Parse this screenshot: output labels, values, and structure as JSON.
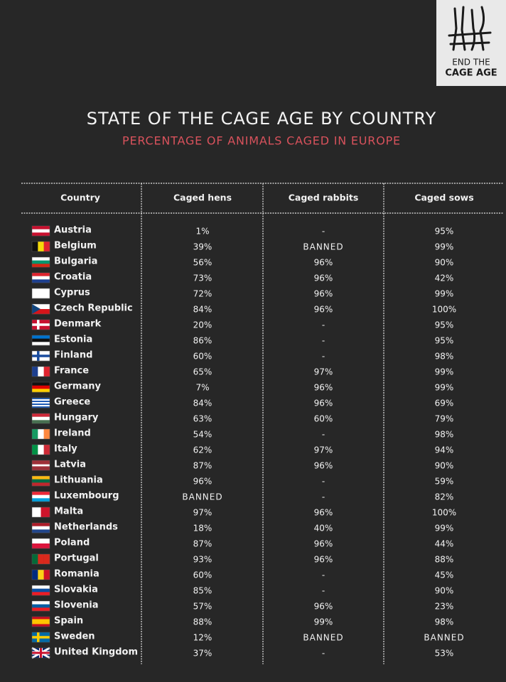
{
  "logo": {
    "line1": "END THE",
    "line2": "CAGE AGE"
  },
  "title": "STATE OF THE CAGE AGE BY COUNTRY",
  "subtitle": "PERCENTAGE OF ANIMALS CAGED IN EUROPE",
  "table": {
    "header": [
      "Country",
      "Caged hens",
      "Caged rabbits",
      "Caged sows"
    ],
    "rows": [
      [
        "Austria",
        "1%",
        "-",
        "95%"
      ],
      [
        "Belgium",
        "39%",
        "BANNED",
        "99%"
      ],
      [
        "Bulgaria",
        "56%",
        "96%",
        "90%"
      ],
      [
        "Croatia",
        "73%",
        "96%",
        "42%"
      ],
      [
        "Cyprus",
        "72%",
        "96%",
        "99%"
      ],
      [
        "Czech Republic",
        "84%",
        "96%",
        "100%"
      ],
      [
        "Denmark",
        "20%",
        "-",
        "95%"
      ],
      [
        "Estonia",
        "86%",
        "-",
        "95%"
      ],
      [
        "Finland",
        "60%",
        "-",
        "98%"
      ],
      [
        "France",
        "65%",
        "97%",
        "99%"
      ],
      [
        "Germany",
        "7%",
        "96%",
        "99%"
      ],
      [
        "Greece",
        "84%",
        "96%",
        "69%"
      ],
      [
        "Hungary",
        "63%",
        "60%",
        "79%"
      ],
      [
        "Ireland",
        "54%",
        "-",
        "98%"
      ],
      [
        "Italy",
        "62%",
        "97%",
        "94%"
      ],
      [
        "Latvia",
        "87%",
        "96%",
        "90%"
      ],
      [
        "Lithuania",
        "96%",
        "-",
        "59%"
      ],
      [
        "Luxembourg",
        "BANNED",
        "-",
        "82%"
      ],
      [
        "Malta",
        "97%",
        "96%",
        "100%"
      ],
      [
        "Netherlands",
        "18%",
        "40%",
        "99%"
      ],
      [
        "Poland",
        "87%",
        "96%",
        "44%"
      ],
      [
        "Portugal",
        "93%",
        "96%",
        "88%"
      ],
      [
        "Romania",
        "60%",
        "-",
        "45%"
      ],
      [
        "Slovakia",
        "85%",
        "-",
        "90%"
      ],
      [
        "Slovenia",
        "57%",
        "96%",
        "23%"
      ],
      [
        "Spain",
        "88%",
        "99%",
        "98%"
      ],
      [
        "Sweden",
        "12%",
        "BANNED",
        "BANNED"
      ],
      [
        "United Kingdom",
        "37%",
        "-",
        "53%"
      ]
    ]
  }
}
